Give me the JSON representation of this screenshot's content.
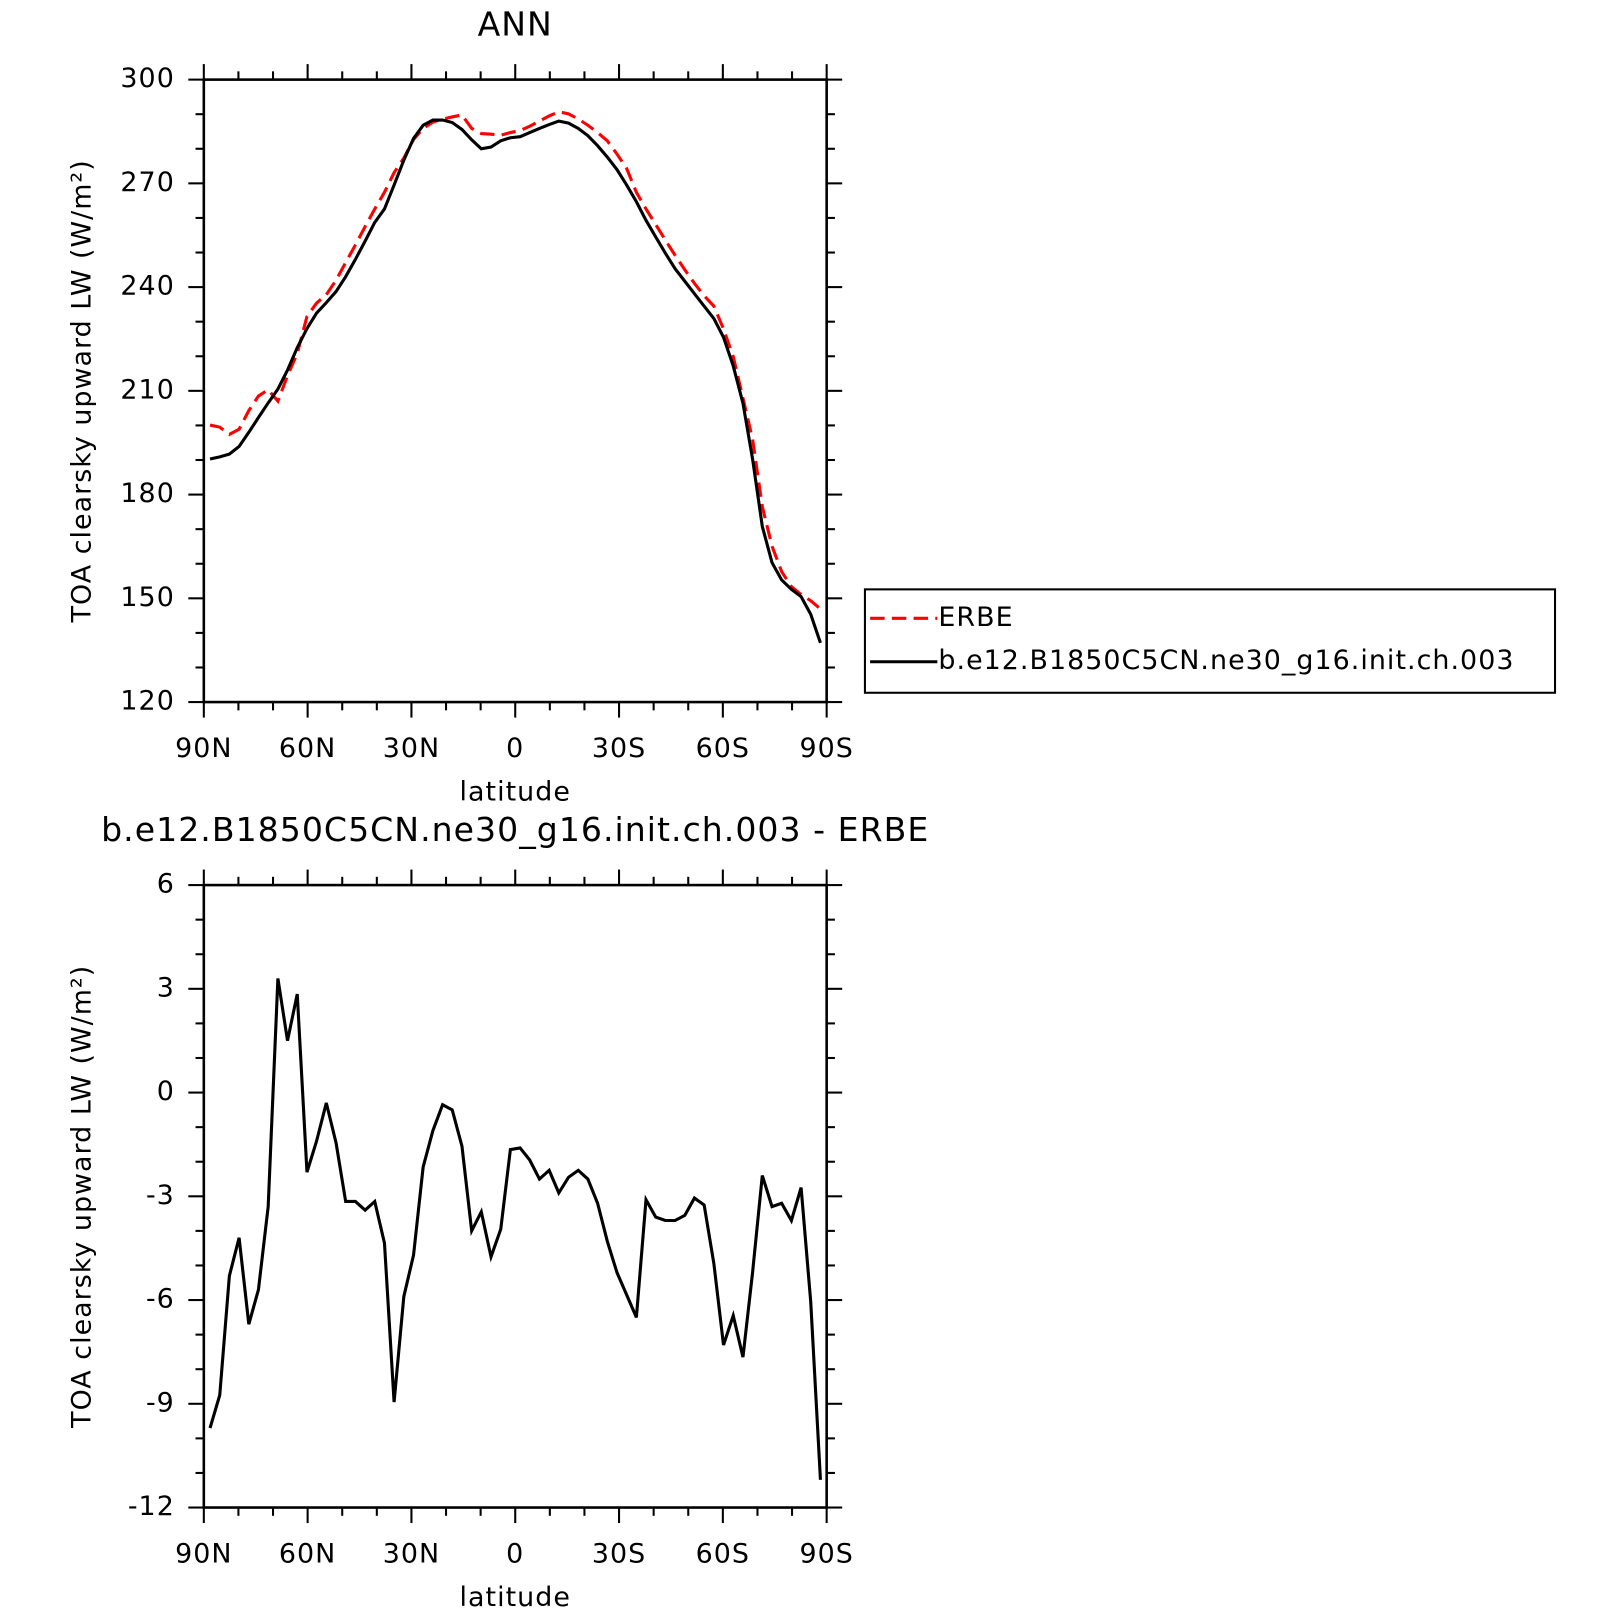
{
  "chart_data": [
    {
      "type": "line",
      "title": "ANN",
      "xlabel": "latitude",
      "ylabel": "TOA clearsky upward LW (W/m²)",
      "x": [
        88.2,
        85.4,
        82.6,
        79.8,
        77,
        74.2,
        71.4,
        68.6,
        65.8,
        63,
        60.2,
        57.4,
        54.6,
        51.8,
        49,
        46.2,
        43.4,
        40.6,
        37.8,
        35,
        32.2,
        29.4,
        26.6,
        23.8,
        21,
        18.2,
        15.4,
        12.6,
        9.8,
        7,
        4.2,
        1.4,
        -1.4,
        -4.2,
        -7,
        -9.8,
        -12.6,
        -15.4,
        -18.2,
        -21,
        -23.8,
        -26.6,
        -29.4,
        -32.2,
        -35,
        -37.8,
        -40.6,
        -43.4,
        -46.2,
        -49,
        -51.8,
        -54.6,
        -57.4,
        -60.2,
        -63,
        -65.8,
        -68.6,
        -71.4,
        -74.2,
        -77,
        -79.8,
        -82.6,
        -85.4,
        -88.2
      ],
      "series": [
        {
          "name": "ERBE",
          "color": "#ff0000",
          "line_style": "dashed",
          "values": [
            200.1,
            199.5,
            197.4,
            198.9,
            204.3,
            208.5,
            210.3,
            207,
            214.4,
            220.8,
            231.5,
            235.4,
            237.8,
            242,
            247.1,
            252.2,
            257.5,
            262.6,
            267.4,
            273.1,
            277.3,
            282.7,
            285.9,
            287.7,
            288.6,
            289.2,
            289.8,
            285.9,
            284.4,
            284.2,
            283.9,
            284.7,
            285.3,
            286.5,
            288,
            289.5,
            290.7,
            290.1,
            288.6,
            286.8,
            284.7,
            282.3,
            278.5,
            274.3,
            267.4,
            262.6,
            258.1,
            253.6,
            249.2,
            245,
            241.1,
            237.5,
            234.5,
            227.9,
            219.9,
            207.9,
            196,
            176.5,
            165.1,
            157.7,
            153.4,
            151.1,
            149.3,
            146.9
          ]
        },
        {
          "name": "b.e12.B1850C5CN.ne30_g16.init.ch.003",
          "color": "#000000",
          "line_style": "solid",
          "values": [
            190.3,
            190.9,
            191.7,
            193.9,
            198,
            202.3,
            206.5,
            210.5,
            216,
            222.5,
            228,
            232.5,
            235.5,
            238.7,
            243,
            248,
            253.3,
            258.7,
            262.6,
            269.5,
            276.7,
            283,
            286.8,
            288.3,
            288.3,
            287.6,
            285.6,
            282.6,
            280,
            280.5,
            282.3,
            283.2,
            283.5,
            284.7,
            285.9,
            287,
            288,
            287.4,
            285.9,
            283.8,
            280.9,
            277.6,
            274,
            269.5,
            264.7,
            259.3,
            254.5,
            249.8,
            245.3,
            241.7,
            238.1,
            234.5,
            230.9,
            225.5,
            217.2,
            206.4,
            190.3,
            170.8,
            160.3,
            155.3,
            152.6,
            150.5,
            145.4,
            137.1
          ]
        }
      ],
      "xlim": [
        90,
        -90
      ],
      "xticks": [
        {
          "value": 90,
          "label": "90N"
        },
        {
          "value": 60,
          "label": "60N"
        },
        {
          "value": 30,
          "label": "30N"
        },
        0,
        {
          "value": -30,
          "label": "30S"
        },
        {
          "value": -60,
          "label": "60S"
        },
        {
          "value": -90,
          "label": "90S"
        }
      ],
      "ylim": [
        120,
        300
      ],
      "yticks": [
        120,
        150,
        180,
        210,
        240,
        270,
        300
      ],
      "legend": "right"
    },
    {
      "type": "line",
      "title": "b.e12.B1850C5CN.ne30_g16.init.ch.003 - ERBE",
      "xlabel": "latitude",
      "ylabel": "TOA clearsky upward LW (W/m²)",
      "x": [
        88.2,
        85.4,
        82.6,
        79.8,
        77,
        74.2,
        71.4,
        68.6,
        65.8,
        63,
        60.2,
        57.4,
        54.6,
        51.8,
        49,
        46.2,
        43.4,
        40.6,
        37.8,
        35,
        32.2,
        29.4,
        26.6,
        23.8,
        21,
        18.2,
        15.4,
        12.6,
        9.8,
        7,
        4.2,
        1.4,
        -1.4,
        -4.2,
        -7,
        -9.8,
        -12.6,
        -15.4,
        -18.2,
        -21,
        -23.8,
        -26.6,
        -29.4,
        -32.2,
        -35,
        -37.8,
        -40.6,
        -43.4,
        -46.2,
        -49,
        -51.8,
        -54.6,
        -57.4,
        -60.2,
        -63,
        -65.8,
        -68.6,
        -71.4,
        -74.2,
        -77,
        -79.8,
        -82.6,
        -85.4,
        -88.2
      ],
      "values": [
        -9.7,
        -8.75,
        -5.3,
        -4.2,
        -6.7,
        -5.7,
        -3.3,
        3.3,
        1.5,
        2.85,
        -2.3,
        -1.4,
        -0.3,
        -1.45,
        -3.15,
        -3.15,
        -3.4,
        -3.15,
        -4.35,
        -8.95,
        -5.9,
        -4.7,
        -2.15,
        -1.1,
        -0.35,
        -0.5,
        -1.55,
        -4,
        -3.45,
        -4.75,
        -3.95,
        -1.65,
        -1.6,
        -1.95,
        -2.5,
        -2.25,
        -2.9,
        -2.45,
        -2.25,
        -2.5,
        -3.2,
        -4.3,
        -5.2,
        -5.85,
        -6.5,
        -3.1,
        -3.6,
        -3.7,
        -3.7,
        -3.55,
        -3.05,
        -3.25,
        -4.95,
        -7.3,
        -6.45,
        -7.65,
        -5.2,
        -2.4,
        -3.3,
        -3.2,
        -3.7,
        -2.75,
        -6.05,
        -11.2
      ],
      "color": "#000000",
      "xlim": [
        90,
        -90
      ],
      "xticks": [
        {
          "value": 90,
          "label": "90N"
        },
        {
          "value": 60,
          "label": "60N"
        },
        {
          "value": 30,
          "label": "30N"
        },
        0,
        {
          "value": -30,
          "label": "30S"
        },
        {
          "value": -60,
          "label": "60S"
        },
        {
          "value": -90,
          "label": "90S"
        }
      ],
      "ylim": [
        -12,
        6
      ],
      "yticks": [
        -12,
        -9,
        -6,
        -3,
        0,
        3,
        6
      ]
    }
  ]
}
